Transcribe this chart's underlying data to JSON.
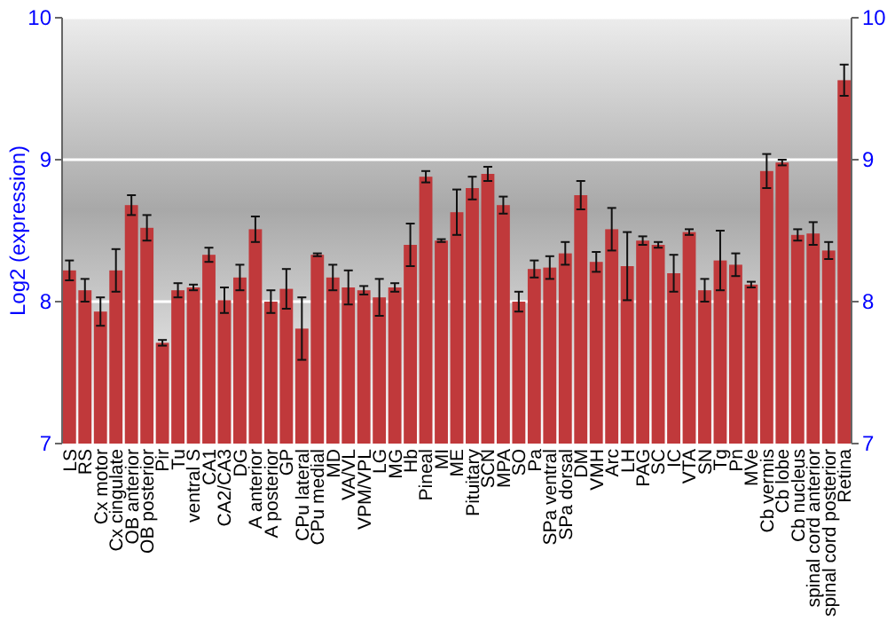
{
  "chart_data": {
    "type": "bar",
    "ylabel": "Log2 (expression)",
    "categories": [
      "LS",
      "RS",
      "Cx motor",
      "Cx cingulate",
      "OB anterior",
      "OB posterior",
      "Pir",
      "Tu",
      "ventral S",
      "CA1",
      "CA2/CA3",
      "DG",
      "A anterior",
      "A posterior",
      "GP",
      "CPu lateral",
      "CPu medial",
      "MD",
      "VA/VL",
      "VPM/VPL",
      "LG",
      "MG",
      "Hb",
      "Pineal",
      "MI",
      "ME",
      "Pituitary",
      "SCN",
      "MPA",
      "SO",
      "Pa",
      "SPa ventral",
      "SPa dorsal",
      "DM",
      "VMH",
      "Arc",
      "LH",
      "PAG",
      "SC",
      "IC",
      "VTA",
      "SN",
      "Tg",
      "Pn",
      "MVe",
      "Cb vermis",
      "Cb lobe",
      "Cb nucleus",
      "spinal cord anterior",
      "spinal cord posterior",
      "Retina"
    ],
    "values": [
      8.22,
      8.08,
      7.93,
      8.22,
      8.68,
      8.52,
      7.71,
      8.08,
      8.1,
      8.33,
      8.01,
      8.17,
      8.51,
      8.0,
      8.09,
      7.81,
      8.33,
      8.17,
      8.1,
      8.08,
      8.03,
      8.1,
      8.4,
      8.88,
      8.43,
      8.63,
      8.8,
      8.9,
      8.68,
      8.0,
      8.23,
      8.24,
      8.34,
      8.75,
      8.28,
      8.51,
      8.25,
      8.43,
      8.4,
      8.2,
      8.49,
      8.08,
      8.29,
      8.26,
      8.12,
      8.92,
      8.98,
      8.47,
      8.48,
      8.36,
      9.56
    ],
    "errors": [
      0.07,
      0.08,
      0.1,
      0.15,
      0.07,
      0.09,
      0.02,
      0.05,
      0.02,
      0.05,
      0.09,
      0.09,
      0.09,
      0.08,
      0.14,
      0.22,
      0.01,
      0.09,
      0.12,
      0.03,
      0.13,
      0.03,
      0.15,
      0.04,
      0.01,
      0.16,
      0.08,
      0.05,
      0.06,
      0.07,
      0.06,
      0.08,
      0.08,
      0.1,
      0.07,
      0.15,
      0.24,
      0.03,
      0.02,
      0.13,
      0.02,
      0.08,
      0.21,
      0.08,
      0.02,
      0.12,
      0.02,
      0.04,
      0.08,
      0.06,
      0.11
    ],
    "color": "#c0393b",
    "ylim": [
      7,
      10
    ],
    "yticks": [
      7,
      8,
      9,
      10
    ],
    "y2lim": [
      7,
      10
    ],
    "y2ticks": [
      7,
      8,
      9,
      10
    ],
    "grid": "y"
  }
}
